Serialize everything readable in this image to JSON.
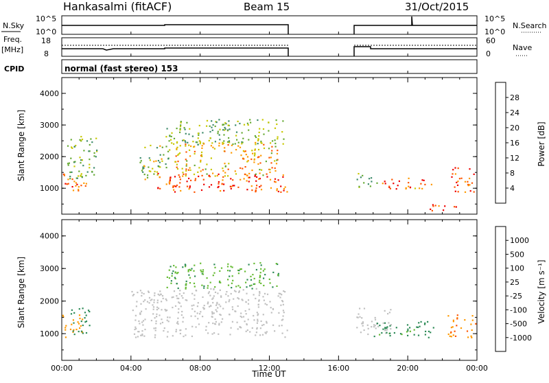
{
  "header": {
    "station": "Hankasalmi (fitACF)",
    "beam": "Beam 15",
    "date": "31/Oct/2015"
  },
  "strip_labels": {
    "nsky": "N.Sky",
    "nsky_ticks": [
      "10^5",
      "10^0"
    ],
    "nsearch": "N.Search",
    "nsearch_ticks": [
      "10^5",
      "10^0"
    ],
    "freq_line1": "Freq.",
    "freq_line2": "[MHz]",
    "freq_ticks": [
      "18",
      "8"
    ],
    "nave": "Nave",
    "nave_ticks": [
      "60",
      "0"
    ],
    "cpid": "CPID",
    "cpid_value": "normal (fast stereo) 153"
  },
  "colors": {
    "power_scale": [
      "#0000ff",
      "#2b5fa8",
      "#3d8a6a",
      "#66aa33",
      "#c8c800",
      "#ff9900",
      "#ff5500",
      "#ee0000"
    ],
    "velocity_scale": [
      "#ee0000",
      "#ff5500",
      "#ff9900",
      "#c8c800",
      "#bbbbbb",
      "#66bb33",
      "#2e8b57",
      "#2b5fa8",
      "#1010cc"
    ],
    "ground_scatter": "#c0c0c0"
  },
  "chart_data": [
    {
      "type": "heatmap",
      "title": "Power",
      "ylabel": "Slant Range [km]",
      "ylim": [
        180,
        4500
      ],
      "yticks": [
        "1000",
        "2000",
        "3000",
        "4000"
      ],
      "xlim": [
        "00:00",
        "24:00"
      ],
      "colorbar": {
        "label": "Power [dB]",
        "ticks": [
          "4",
          "8",
          "12",
          "16",
          "20",
          "24",
          "28"
        ],
        "range": [
          0,
          32
        ]
      },
      "regions": [
        {
          "t": [
            0.0,
            1.4
          ],
          "r": [
            900,
            1500
          ],
          "level": 26
        },
        {
          "t": [
            0.3,
            2.0
          ],
          "r": [
            1300,
            2700
          ],
          "level": 14
        },
        {
          "t": [
            4.5,
            6.2
          ],
          "r": [
            1300,
            2400
          ],
          "level": 16
        },
        {
          "t": [
            5.5,
            13.0
          ],
          "r": [
            900,
            1500
          ],
          "level": 27
        },
        {
          "t": [
            6.5,
            12.5
          ],
          "r": [
            1400,
            2500
          ],
          "level": 21
        },
        {
          "t": [
            6.0,
            12.8
          ],
          "r": [
            2400,
            3200
          ],
          "level": 14
        },
        {
          "t": [
            17.0,
            18.2
          ],
          "r": [
            1050,
            1500
          ],
          "level": 13
        },
        {
          "t": [
            18.5,
            21.5
          ],
          "r": [
            1000,
            1350
          ],
          "level": 25
        },
        {
          "t": [
            22.5,
            23.8
          ],
          "r": [
            900,
            1700
          ],
          "level": 27
        },
        {
          "t": [
            21.0,
            23.0
          ],
          "r": [
            300,
            500
          ],
          "level": 26
        }
      ]
    },
    {
      "type": "heatmap",
      "title": "Velocity",
      "ylabel": "Slant Range [km]",
      "ylim": [
        180,
        4500
      ],
      "yticks": [
        "1000",
        "2000",
        "3000",
        "4000"
      ],
      "xlabel": "Time UT",
      "xticks": [
        "00:00",
        "04:00",
        "08:00",
        "12:00",
        "16:00",
        "20:00",
        "00:00"
      ],
      "xlim": [
        "00:00",
        "24:00"
      ],
      "colorbar": {
        "label": "Velocity [m s⁻¹]",
        "ticks": [
          "1000",
          "500",
          "100",
          "25",
          "-25",
          "-100",
          "-500",
          "-1000"
        ]
      },
      "regions": [
        {
          "t": [
            0.0,
            1.2
          ],
          "r": [
            900,
            1600
          ],
          "level": -300
        },
        {
          "t": [
            0.5,
            1.6
          ],
          "r": [
            1000,
            1800
          ],
          "level": 200
        },
        {
          "t": [
            4.0,
            13.0
          ],
          "r": [
            900,
            2400
          ],
          "level": 0
        },
        {
          "t": [
            6.0,
            12.5
          ],
          "r": [
            2400,
            3200
          ],
          "level": 80
        },
        {
          "t": [
            17.0,
            19.0
          ],
          "r": [
            1000,
            1800
          ],
          "level": 0
        },
        {
          "t": [
            18.0,
            21.5
          ],
          "r": [
            900,
            1400
          ],
          "level": 150
        },
        {
          "t": [
            22.3,
            23.9
          ],
          "r": [
            900,
            1600
          ],
          "level": -400
        }
      ]
    }
  ]
}
